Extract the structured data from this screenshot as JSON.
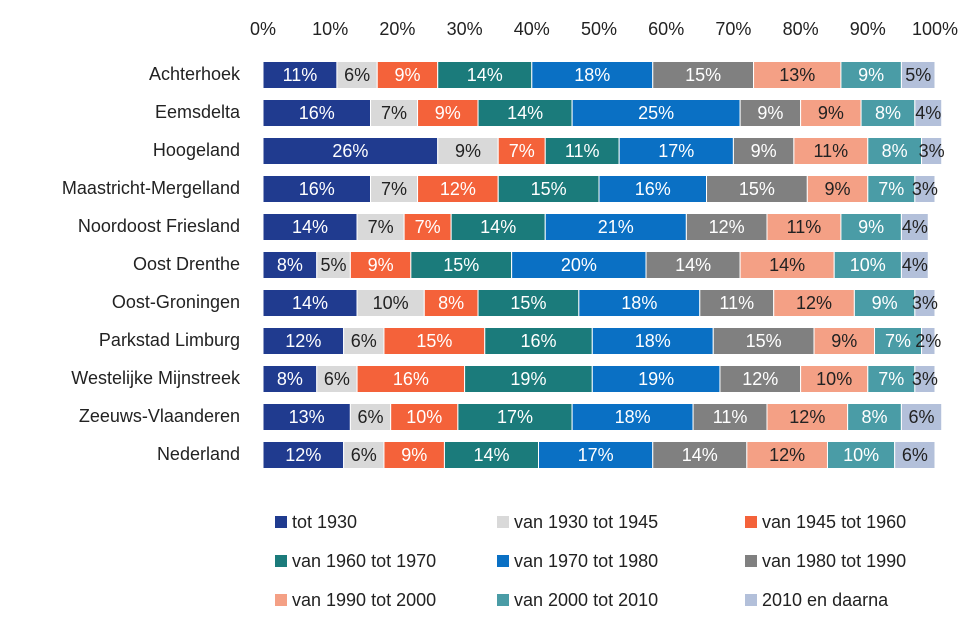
{
  "chart_data": {
    "type": "stacked-barh",
    "categories": [
      "Achterhoek",
      "Eemsdelta",
      "Hoogeland",
      "Maastricht-Mergelland",
      "Noordoost Friesland",
      "Oost Drenthe",
      "Oost-Groningen",
      "Parkstad Limburg",
      "Westelijke Mijnstreek",
      "Zeeuws-Vlaanderen",
      "Nederland"
    ],
    "xlim": [
      0,
      100
    ],
    "xticks": [
      {
        "value": 0,
        "label": "0%"
      },
      {
        "value": 10,
        "label": "10%"
      },
      {
        "value": 20,
        "label": "20%"
      },
      {
        "value": 30,
        "label": "30%"
      },
      {
        "value": 40,
        "label": "40%"
      },
      {
        "value": 50,
        "label": "50%"
      },
      {
        "value": 60,
        "label": "60%"
      },
      {
        "value": 70,
        "label": "70%"
      },
      {
        "value": 80,
        "label": "80%"
      },
      {
        "value": 90,
        "label": "90%"
      },
      {
        "value": 100,
        "label": "100%"
      }
    ],
    "legend": "bottom",
    "series": [
      {
        "name": "tot 1930",
        "color": "#203b8f",
        "values": [
          11,
          16,
          26,
          16,
          14,
          8,
          14,
          12,
          8,
          13,
          12
        ],
        "value_labels": [
          "11%",
          "16%",
          "26%",
          "16%",
          "14%",
          "8%",
          "14%",
          "12%",
          "8%",
          "13%",
          "12%"
        ]
      },
      {
        "name": "van 1930 tot 1945",
        "color": "#d9d9d9",
        "values": [
          6,
          7,
          9,
          7,
          7,
          5,
          10,
          6,
          6,
          6,
          6
        ],
        "value_labels": [
          "6%",
          "7%",
          "9%",
          "7%",
          "7%",
          "5%",
          "10%",
          "6%",
          "6%",
          "6%",
          "6%"
        ]
      },
      {
        "name": "van 1945 tot 1960",
        "color": "#f4623a",
        "values": [
          9,
          9,
          7,
          12,
          7,
          9,
          8,
          15,
          16,
          10,
          9
        ],
        "value_labels": [
          "9%",
          "9%",
          "7%",
          "12%",
          "7%",
          "9%",
          "8%",
          "15%",
          "16%",
          "10%",
          "9%"
        ]
      },
      {
        "name": "van 1960 tot 1970",
        "color": "#1b7b7b",
        "values": [
          14,
          14,
          11,
          15,
          14,
          15,
          15,
          16,
          19,
          17,
          14
        ],
        "value_labels": [
          "14%",
          "14%",
          "11%",
          "15%",
          "14%",
          "15%",
          "15%",
          "16%",
          "19%",
          "17%",
          "14%"
        ]
      },
      {
        "name": "van 1970 tot 1980",
        "color": "#0a70c4",
        "values": [
          18,
          25,
          17,
          16,
          21,
          20,
          18,
          18,
          19,
          18,
          17
        ],
        "value_labels": [
          "18%",
          "25%",
          "17%",
          "16%",
          "21%",
          "20%",
          "18%",
          "18%",
          "19%",
          "18%",
          "17%"
        ]
      },
      {
        "name": "van 1980 tot 1990",
        "color": "#808080",
        "values": [
          15,
          9,
          9,
          15,
          12,
          14,
          11,
          15,
          12,
          11,
          14
        ],
        "value_labels": [
          "15%",
          "9%",
          "9%",
          "15%",
          "12%",
          "14%",
          "11%",
          "15%",
          "12%",
          "11%",
          "14%"
        ]
      },
      {
        "name": "van 1990 tot 2000",
        "color": "#f4a085",
        "values": [
          13,
          9,
          11,
          9,
          11,
          14,
          12,
          9,
          10,
          12,
          12
        ],
        "value_labels": [
          "13%",
          "9%",
          "11%",
          "9%",
          "11%",
          "14%",
          "12%",
          "9%",
          "10%",
          "12%",
          "12%"
        ]
      },
      {
        "name": "van 2000 tot 2010",
        "color": "#4a9ca6",
        "values": [
          9,
          8,
          8,
          7,
          9,
          10,
          9,
          7,
          7,
          8,
          10
        ],
        "value_labels": [
          "9%",
          "8%",
          "8%",
          "7%",
          "9%",
          "10%",
          "9%",
          "7%",
          "7%",
          "8%",
          "10%"
        ]
      },
      {
        "name": "2010 en daarna",
        "color": "#b3c0da",
        "values": [
          5,
          4,
          3,
          3,
          4,
          4,
          3,
          2,
          3,
          6,
          6
        ],
        "value_labels": [
          "5%",
          "4%",
          "3%",
          "3%",
          "4%",
          "4%",
          "3%",
          "2%",
          "3%",
          "6%",
          "6%"
        ]
      }
    ]
  }
}
